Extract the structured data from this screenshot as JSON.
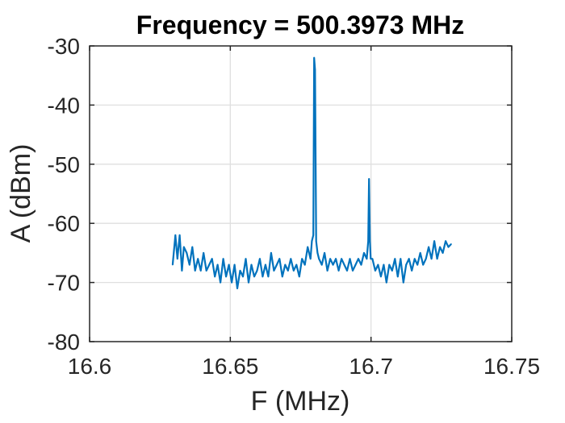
{
  "chart_data": {
    "type": "line",
    "title": "Frequency = 500.3973 MHz",
    "xlabel": "F (MHz)",
    "ylabel": "A (dBm)",
    "xlim": [
      16.6,
      16.75
    ],
    "ylim": [
      -80,
      -30
    ],
    "xticks": [
      16.6,
      16.65,
      16.7,
      16.75
    ],
    "xtick_labels": [
      "16.6",
      "16.65",
      "16.7",
      "16.75"
    ],
    "yticks": [
      -80,
      -70,
      -60,
      -50,
      -40,
      -30
    ],
    "ytick_labels": [
      "-80",
      "-70",
      "-60",
      "-50",
      "-40",
      "-30"
    ],
    "grid": true,
    "legend": false,
    "colors": {
      "series": "#0072BD",
      "grid": "#DFDFDF",
      "axes": "#262626"
    },
    "series": [
      {
        "x": [
          16.6295,
          16.6305,
          16.6312,
          16.632,
          16.6328,
          16.6335,
          16.6345,
          16.6355,
          16.6365,
          16.6375,
          16.6385,
          16.6395,
          16.6405,
          16.6415,
          16.6425,
          16.6435,
          16.6445,
          16.6455,
          16.6465,
          16.6475,
          16.6485,
          16.6495,
          16.6505,
          16.6515,
          16.6525,
          16.6535,
          16.6545,
          16.6555,
          16.6565,
          16.6575,
          16.6585,
          16.6595,
          16.6605,
          16.6615,
          16.6625,
          16.6635,
          16.6645,
          16.6655,
          16.6665,
          16.6675,
          16.6685,
          16.6695,
          16.6705,
          16.6715,
          16.6725,
          16.6735,
          16.6745,
          16.6755,
          16.6765,
          16.6775,
          16.6785,
          16.679,
          16.6795,
          16.6798,
          16.6801,
          16.6805,
          16.681,
          16.6815,
          16.6825,
          16.6835,
          16.6845,
          16.6855,
          16.6865,
          16.6875,
          16.6885,
          16.6895,
          16.6905,
          16.6915,
          16.6925,
          16.6935,
          16.6945,
          16.6955,
          16.6965,
          16.6975,
          16.6985,
          16.699,
          16.6993,
          16.6996,
          16.6999,
          16.7005,
          16.7015,
          16.7025,
          16.7035,
          16.7045,
          16.7055,
          16.7065,
          16.7075,
          16.7085,
          16.7095,
          16.7105,
          16.7115,
          16.7125,
          16.7135,
          16.7145,
          16.7155,
          16.7165,
          16.7175,
          16.7185,
          16.7195,
          16.7205,
          16.7215,
          16.7225,
          16.7235,
          16.7245,
          16.7255,
          16.7265,
          16.7275,
          16.7285
        ],
        "y": [
          -67,
          -62,
          -66,
          -62,
          -68,
          -64,
          -65,
          -67,
          -64,
          -68,
          -66,
          -68,
          -65,
          -68,
          -67,
          -66,
          -69,
          -67,
          -70,
          -66,
          -69,
          -67,
          -70,
          -67,
          -71,
          -68,
          -69,
          -66,
          -70,
          -67,
          -69,
          -68,
          -66,
          -69,
          -67,
          -69,
          -65,
          -68,
          -67,
          -66,
          -69,
          -67,
          -68,
          -66,
          -68,
          -67,
          -69,
          -66,
          -67,
          -64,
          -66,
          -63,
          -62,
          -32,
          -34,
          -63,
          -65,
          -66,
          -67,
          -65,
          -68,
          -66,
          -67,
          -66,
          -68,
          -66,
          -67,
          -68,
          -66,
          -68,
          -67,
          -66,
          -67,
          -65,
          -66,
          -63,
          -52.5,
          -63,
          -66,
          -66,
          -68,
          -67,
          -69,
          -67,
          -70,
          -67,
          -68,
          -66,
          -69,
          -66,
          -70,
          -67,
          -66,
          -68,
          -66,
          -67,
          -65,
          -67,
          -66,
          -64,
          -66,
          -63,
          -66,
          -64,
          -65,
          -63,
          -64,
          -63.5
        ]
      }
    ]
  }
}
